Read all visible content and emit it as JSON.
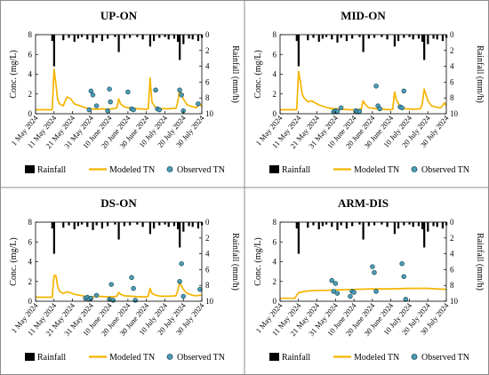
{
  "chart_data": [
    {
      "type": "line",
      "title": "UP-ON",
      "ylabel_left": "Conc. (mg/L)",
      "ylabel_right": "Rainfall (mm/h)",
      "ylim_left": [
        0,
        8
      ],
      "ylim_right_inverted": [
        0,
        10
      ],
      "x_ticks": [
        "1 May 2024",
        "11 May 2024",
        "21 May 2024",
        "31 May 2024",
        "10 June 2024",
        "20 June 2024",
        "30 June 2024",
        "10 July 2024",
        "20 July 2024",
        "30 July 2024"
      ],
      "y_ticks_left": [
        "0",
        "2",
        "4",
        "6",
        "8"
      ],
      "y_ticks_right": [
        "0",
        "2",
        "4",
        "6",
        "8",
        "10"
      ],
      "legend": {
        "rainfall": "Rainfall",
        "modeled": "Modeled TN",
        "observed": "Observed TN"
      },
      "rainfall": [
        [
          9,
          0.8
        ],
        [
          10,
          4.0
        ],
        [
          15,
          0.7
        ],
        [
          18,
          0.4
        ],
        [
          21,
          0.9
        ],
        [
          23,
          0.5
        ],
        [
          25,
          0.3
        ],
        [
          28,
          0.6
        ],
        [
          31,
          1.0
        ],
        [
          33,
          0.4
        ],
        [
          36,
          0.8
        ],
        [
          39,
          0.5
        ],
        [
          43,
          0.3
        ],
        [
          45,
          2.2
        ],
        [
          48,
          0.5
        ],
        [
          51,
          0.4
        ],
        [
          55,
          0.3
        ],
        [
          58,
          0.6
        ],
        [
          62,
          1.5
        ],
        [
          64,
          0.8
        ],
        [
          67,
          0.4
        ],
        [
          70,
          0.3
        ],
        [
          72,
          0.6
        ],
        [
          75,
          0.5
        ],
        [
          77,
          0.9
        ],
        [
          78,
          3.2
        ],
        [
          80,
          1.2
        ],
        [
          83,
          0.5
        ],
        [
          85,
          0.6
        ],
        [
          88,
          0.8
        ],
        [
          90,
          0.4
        ]
      ],
      "modeled_tn": [
        [
          0,
          0.4
        ],
        [
          9,
          0.4
        ],
        [
          10,
          4.5
        ],
        [
          11,
          3.0
        ],
        [
          12,
          1.4
        ],
        [
          13,
          1.0
        ],
        [
          15,
          0.8
        ],
        [
          17,
          1.7
        ],
        [
          19,
          1.5
        ],
        [
          21,
          1.0
        ],
        [
          24,
          0.8
        ],
        [
          27,
          0.6
        ],
        [
          30,
          0.5
        ],
        [
          33,
          0.45
        ],
        [
          36,
          0.5
        ],
        [
          39,
          0.45
        ],
        [
          42,
          0.5
        ],
        [
          44,
          0.6
        ],
        [
          45,
          1.5
        ],
        [
          46,
          1.0
        ],
        [
          48,
          0.7
        ],
        [
          52,
          0.55
        ],
        [
          56,
          0.5
        ],
        [
          60,
          0.45
        ],
        [
          61,
          0.5
        ],
        [
          62,
          3.6
        ],
        [
          63,
          1.2
        ],
        [
          65,
          0.6
        ],
        [
          68,
          0.5
        ],
        [
          72,
          0.5
        ],
        [
          76,
          0.55
        ],
        [
          77,
          1.2
        ],
        [
          78,
          2.5
        ],
        [
          80,
          1.5
        ],
        [
          82,
          0.9
        ],
        [
          85,
          0.7
        ],
        [
          87,
          0.6
        ],
        [
          89,
          1.0
        ],
        [
          90,
          0.7
        ]
      ],
      "observed_tn": [
        [
          29,
          0.4
        ],
        [
          30,
          2.3
        ],
        [
          31,
          1.9
        ],
        [
          33,
          0.8
        ],
        [
          39,
          0.3
        ],
        [
          40,
          2.5
        ],
        [
          40.5,
          1.2
        ],
        [
          50,
          2.2
        ],
        [
          52,
          0.5
        ],
        [
          53,
          0.4
        ],
        [
          65,
          2.4
        ],
        [
          66,
          0.5
        ],
        [
          67,
          0.4
        ],
        [
          78,
          2.4
        ],
        [
          79,
          1.9
        ],
        [
          80,
          0.3
        ],
        [
          88,
          1.0
        ]
      ]
    },
    {
      "type": "line",
      "title": "MID-ON",
      "ylabel_left": "Conc. (mg/L)",
      "ylabel_right": "Rainfall (mm/h)",
      "ylim_left": [
        0,
        8
      ],
      "ylim_right_inverted": [
        0,
        10
      ],
      "x_ticks": [
        "1 May 2024",
        "11 May 2024",
        "21 May 2024",
        "31 May 2024",
        "10 June 2024",
        "20 June 2024",
        "30 June 2024",
        "10 July 2024",
        "20 July 2024",
        "30 July 2024"
      ],
      "y_ticks_left": [
        "0",
        "2",
        "4",
        "6",
        "8"
      ],
      "y_ticks_right": [
        "0",
        "2",
        "4",
        "6",
        "8",
        "10"
      ],
      "legend": {
        "rainfall": "Rainfall",
        "modeled": "Modeled TN",
        "observed": "Observed TN"
      },
      "rainfall": [
        [
          9,
          0.8
        ],
        [
          10,
          4.0
        ],
        [
          15,
          0.7
        ],
        [
          18,
          0.4
        ],
        [
          21,
          0.9
        ],
        [
          23,
          0.5
        ],
        [
          25,
          0.3
        ],
        [
          28,
          0.6
        ],
        [
          31,
          1.0
        ],
        [
          33,
          0.4
        ],
        [
          36,
          0.8
        ],
        [
          39,
          0.5
        ],
        [
          43,
          0.3
        ],
        [
          45,
          2.2
        ],
        [
          48,
          0.5
        ],
        [
          51,
          0.4
        ],
        [
          55,
          0.3
        ],
        [
          58,
          0.6
        ],
        [
          62,
          1.5
        ],
        [
          64,
          0.8
        ],
        [
          67,
          0.4
        ],
        [
          70,
          0.3
        ],
        [
          72,
          0.6
        ],
        [
          75,
          0.5
        ],
        [
          77,
          0.9
        ],
        [
          78,
          3.2
        ],
        [
          80,
          1.2
        ],
        [
          83,
          0.5
        ],
        [
          85,
          0.6
        ],
        [
          88,
          0.8
        ],
        [
          90,
          0.4
        ]
      ],
      "modeled_tn": [
        [
          0,
          0.4
        ],
        [
          9,
          0.4
        ],
        [
          10,
          4.3
        ],
        [
          11,
          3.2
        ],
        [
          12,
          2.0
        ],
        [
          13,
          1.6
        ],
        [
          15,
          1.2
        ],
        [
          17,
          1.3
        ],
        [
          19,
          1.1
        ],
        [
          21,
          0.9
        ],
        [
          24,
          0.7
        ],
        [
          27,
          0.55
        ],
        [
          30,
          0.5
        ],
        [
          34,
          0.45
        ],
        [
          38,
          0.4
        ],
        [
          42,
          0.4
        ],
        [
          44,
          0.5
        ],
        [
          45,
          1.3
        ],
        [
          46,
          1.0
        ],
        [
          48,
          0.6
        ],
        [
          52,
          0.5
        ],
        [
          56,
          0.45
        ],
        [
          60,
          0.4
        ],
        [
          61,
          0.45
        ],
        [
          62,
          2.2
        ],
        [
          63,
          1.4
        ],
        [
          65,
          0.7
        ],
        [
          68,
          0.5
        ],
        [
          72,
          0.45
        ],
        [
          76,
          0.5
        ],
        [
          77,
          1.0
        ],
        [
          78,
          2.5
        ],
        [
          80,
          1.3
        ],
        [
          82,
          0.8
        ],
        [
          85,
          0.65
        ],
        [
          87,
          0.6
        ],
        [
          89,
          1.1
        ],
        [
          90,
          0.8
        ]
      ],
      "observed_tn": [
        [
          29,
          0.2
        ],
        [
          30,
          0.3
        ],
        [
          31,
          0.25
        ],
        [
          33,
          0.6
        ],
        [
          41,
          0.3
        ],
        [
          42,
          0.2
        ],
        [
          43,
          0.25
        ],
        [
          52,
          2.8
        ],
        [
          53,
          0.8
        ],
        [
          54,
          0.5
        ],
        [
          65,
          0.7
        ],
        [
          66,
          0.6
        ],
        [
          67,
          2.3
        ]
      ]
    },
    {
      "type": "line",
      "title": "DS-ON",
      "ylabel_left": "Conc. (mg/L)",
      "ylabel_right": "Rainfall (mm/h)",
      "ylim_left": [
        0,
        8
      ],
      "ylim_right_inverted": [
        0,
        10
      ],
      "x_ticks": [
        "1 May 2024",
        "11 May 2024",
        "21 May 2024",
        "31 May 2024",
        "10 June 2024",
        "20 June 2024",
        "30 June 2024",
        "10 July 2024",
        "20 July 2024",
        "30 July 2024"
      ],
      "y_ticks_left": [
        "0",
        "2",
        "4",
        "6",
        "8"
      ],
      "y_ticks_right": [
        "0",
        "2",
        "4",
        "6",
        "8",
        "10"
      ],
      "legend": {
        "rainfall": "Rainfall",
        "modeled": "Modeled TN",
        "observed": "Observed TN"
      },
      "rainfall": [
        [
          9,
          0.8
        ],
        [
          10,
          4.0
        ],
        [
          15,
          0.7
        ],
        [
          18,
          0.4
        ],
        [
          21,
          0.9
        ],
        [
          23,
          0.5
        ],
        [
          25,
          0.3
        ],
        [
          28,
          0.6
        ],
        [
          31,
          1.0
        ],
        [
          33,
          0.4
        ],
        [
          36,
          0.8
        ],
        [
          39,
          0.5
        ],
        [
          43,
          0.3
        ],
        [
          45,
          2.2
        ],
        [
          48,
          0.5
        ],
        [
          51,
          0.4
        ],
        [
          55,
          0.3
        ],
        [
          58,
          0.6
        ],
        [
          62,
          1.5
        ],
        [
          64,
          0.8
        ],
        [
          67,
          0.4
        ],
        [
          70,
          0.3
        ],
        [
          72,
          0.6
        ],
        [
          75,
          0.5
        ],
        [
          77,
          0.9
        ],
        [
          78,
          3.2
        ],
        [
          80,
          1.2
        ],
        [
          83,
          0.5
        ],
        [
          85,
          0.6
        ],
        [
          88,
          0.8
        ],
        [
          90,
          0.4
        ]
      ],
      "modeled_tn": [
        [
          0,
          0.4
        ],
        [
          9,
          0.4
        ],
        [
          10,
          2.6
        ],
        [
          11,
          2.6
        ],
        [
          12,
          1.5
        ],
        [
          13,
          1.0
        ],
        [
          15,
          0.8
        ],
        [
          17,
          0.95
        ],
        [
          19,
          0.85
        ],
        [
          21,
          0.7
        ],
        [
          24,
          0.6
        ],
        [
          27,
          0.5
        ],
        [
          30,
          0.45
        ],
        [
          34,
          0.5
        ],
        [
          38,
          0.45
        ],
        [
          42,
          0.45
        ],
        [
          44,
          0.5
        ],
        [
          45,
          0.9
        ],
        [
          46,
          0.7
        ],
        [
          48,
          0.55
        ],
        [
          52,
          0.5
        ],
        [
          56,
          0.45
        ],
        [
          60,
          0.45
        ],
        [
          61,
          0.5
        ],
        [
          62,
          1.3
        ],
        [
          63,
          0.8
        ],
        [
          65,
          0.6
        ],
        [
          68,
          0.5
        ],
        [
          72,
          0.5
        ],
        [
          76,
          0.55
        ],
        [
          77,
          1.1
        ],
        [
          78,
          1.9
        ],
        [
          80,
          1.2
        ],
        [
          82,
          0.8
        ],
        [
          85,
          0.6
        ],
        [
          87,
          0.55
        ],
        [
          89,
          0.6
        ],
        [
          90,
          0.6
        ]
      ],
      "observed_tn": [
        [
          27,
          0.3
        ],
        [
          28,
          0.4
        ],
        [
          29,
          0.2
        ],
        [
          30,
          0.3
        ],
        [
          33,
          0.6
        ],
        [
          40,
          0.2
        ],
        [
          41,
          1.7
        ],
        [
          42,
          0.1
        ],
        [
          52,
          2.4
        ],
        [
          53,
          1.3
        ],
        [
          54,
          0.1
        ],
        [
          78,
          2.0
        ],
        [
          79,
          3.8
        ],
        [
          80,
          0.5
        ],
        [
          89,
          1.2
        ]
      ]
    },
    {
      "type": "line",
      "title": "ARM-DIS",
      "ylabel_left": "Conc. (mg/L)",
      "ylabel_right": "Rainfall (mm/h)",
      "ylim_left": [
        0,
        8
      ],
      "ylim_right_inverted": [
        0,
        10
      ],
      "x_ticks": [
        "1 May 2024",
        "11 May 2024",
        "21 May 2024",
        "31 May 2024",
        "10 June 2024",
        "20 June 2024",
        "30 June 2024",
        "10 July 2024",
        "20 July 2024",
        "30 July 2024"
      ],
      "y_ticks_left": [
        "0",
        "2",
        "4",
        "6",
        "8"
      ],
      "y_ticks_right": [
        "0",
        "2",
        "4",
        "6",
        "8",
        "10"
      ],
      "legend": {
        "rainfall": "Rainfall",
        "modeled": "Modeled TN",
        "observed": "Observed TN"
      },
      "rainfall": [
        [
          9,
          0.8
        ],
        [
          10,
          4.0
        ],
        [
          15,
          0.7
        ],
        [
          18,
          0.4
        ],
        [
          21,
          0.9
        ],
        [
          23,
          0.5
        ],
        [
          25,
          0.3
        ],
        [
          28,
          0.6
        ],
        [
          31,
          1.0
        ],
        [
          33,
          0.4
        ],
        [
          36,
          0.8
        ],
        [
          39,
          0.5
        ],
        [
          43,
          0.3
        ],
        [
          45,
          2.2
        ],
        [
          48,
          0.5
        ],
        [
          51,
          0.4
        ],
        [
          55,
          0.3
        ],
        [
          58,
          0.6
        ],
        [
          62,
          1.5
        ],
        [
          64,
          0.8
        ],
        [
          67,
          0.4
        ],
        [
          70,
          0.3
        ],
        [
          72,
          0.6
        ],
        [
          75,
          0.5
        ],
        [
          77,
          0.9
        ],
        [
          78,
          3.2
        ],
        [
          80,
          1.2
        ],
        [
          83,
          0.5
        ],
        [
          85,
          0.6
        ],
        [
          88,
          0.8
        ],
        [
          90,
          0.4
        ]
      ],
      "modeled_tn": [
        [
          0,
          0.3
        ],
        [
          8,
          0.3
        ],
        [
          9,
          0.6
        ],
        [
          10,
          0.85
        ],
        [
          13,
          1.0
        ],
        [
          16,
          1.05
        ],
        [
          20,
          1.1
        ],
        [
          25,
          1.1
        ],
        [
          30,
          1.15
        ],
        [
          40,
          1.2
        ],
        [
          50,
          1.25
        ],
        [
          60,
          1.25
        ],
        [
          70,
          1.3
        ],
        [
          80,
          1.3
        ],
        [
          85,
          1.25
        ],
        [
          90,
          1.2
        ]
      ],
      "observed_tn": [
        [
          28,
          2.1
        ],
        [
          29,
          1.0
        ],
        [
          30,
          1.8
        ],
        [
          31,
          0.8
        ],
        [
          38,
          0.5
        ],
        [
          39,
          1.0
        ],
        [
          40,
          0.9
        ],
        [
          50,
          3.5
        ],
        [
          51,
          2.9
        ],
        [
          52,
          1.0
        ],
        [
          66,
          3.8
        ],
        [
          67,
          2.5
        ],
        [
          68,
          0.2
        ]
      ]
    }
  ],
  "colors": {
    "modeled": "#F5B400",
    "observed_fill": "#4D9DB5",
    "observed_stroke": "#1A4D5E",
    "rainfall": "#000000",
    "border": "#8c8c8c"
  }
}
